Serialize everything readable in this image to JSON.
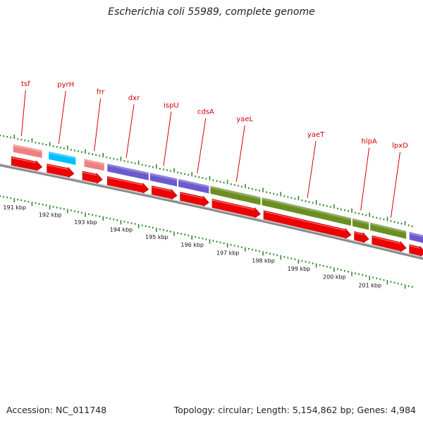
{
  "title": "Escherichia coli 55989, complete genome",
  "footer": {
    "accession": "Accession: NC_011748",
    "summary": "Topology: circular; Length: 5,154,862 bp; Genes: 4,984"
  },
  "colors": {
    "cds": "#ee0000",
    "gene_pink": "#f08080",
    "gene_cyan": "#00bfff",
    "gene_purple": "#6a5acd",
    "gene_olive": "#6b8e23",
    "backbone": "#888888",
    "tick": "#2e8b2e",
    "label": "#d40000"
  },
  "gene_labels": [
    "tsf",
    "pyrH",
    "frr",
    "dxr",
    "ispU",
    "cdsA",
    "yaeL",
    "yaeT",
    "hlpA",
    "lpxD"
  ],
  "gene_bars": [
    {
      "kbp": 190.95,
      "kbp_end": 191.8,
      "color": "pink"
    },
    {
      "kbp": 191.95,
      "kbp_end": 192.75,
      "color": "cyan"
    },
    {
      "kbp": 192.95,
      "kbp_end": 193.55,
      "color": "pink"
    },
    {
      "kbp": 193.6,
      "kbp_end": 194.8,
      "color": "purple"
    },
    {
      "kbp": 194.8,
      "kbp_end": 195.6,
      "color": "purple"
    },
    {
      "kbp": 195.6,
      "kbp_end": 196.5,
      "color": "purple"
    },
    {
      "kbp": 196.5,
      "kbp_end": 197.95,
      "color": "olive"
    },
    {
      "kbp": 197.95,
      "kbp_end": 200.5,
      "color": "olive"
    },
    {
      "kbp": 200.5,
      "kbp_end": 201.0,
      "color": "olive"
    },
    {
      "kbp": 201.0,
      "kbp_end": 202.05,
      "color": "olive"
    },
    {
      "kbp": 202.1,
      "kbp_end": 202.6,
      "color": "purple"
    }
  ],
  "cds_arrows": [
    {
      "kbp": 190.9,
      "kbp_end": 191.8
    },
    {
      "kbp": 191.9,
      "kbp_end": 192.7
    },
    {
      "kbp": 192.9,
      "kbp_end": 193.5
    },
    {
      "kbp": 193.6,
      "kbp_end": 194.8
    },
    {
      "kbp": 194.85,
      "kbp_end": 195.6
    },
    {
      "kbp": 195.65,
      "kbp_end": 196.5
    },
    {
      "kbp": 196.55,
      "kbp_end": 197.95
    },
    {
      "kbp": 198.0,
      "kbp_end": 200.5
    },
    {
      "kbp": 200.55,
      "kbp_end": 201.0
    },
    {
      "kbp": 201.05,
      "kbp_end": 202.05
    },
    {
      "kbp": 202.1,
      "kbp_end": 202.6
    }
  ],
  "scale_labels": [
    "191 kbp",
    "192 kbp",
    "193 kbp",
    "194 kbp",
    "195 kbp",
    "196 kbp",
    "197 kbp",
    "198 kbp",
    "199 kbp",
    "200 kbp",
    "201 kbp"
  ]
}
